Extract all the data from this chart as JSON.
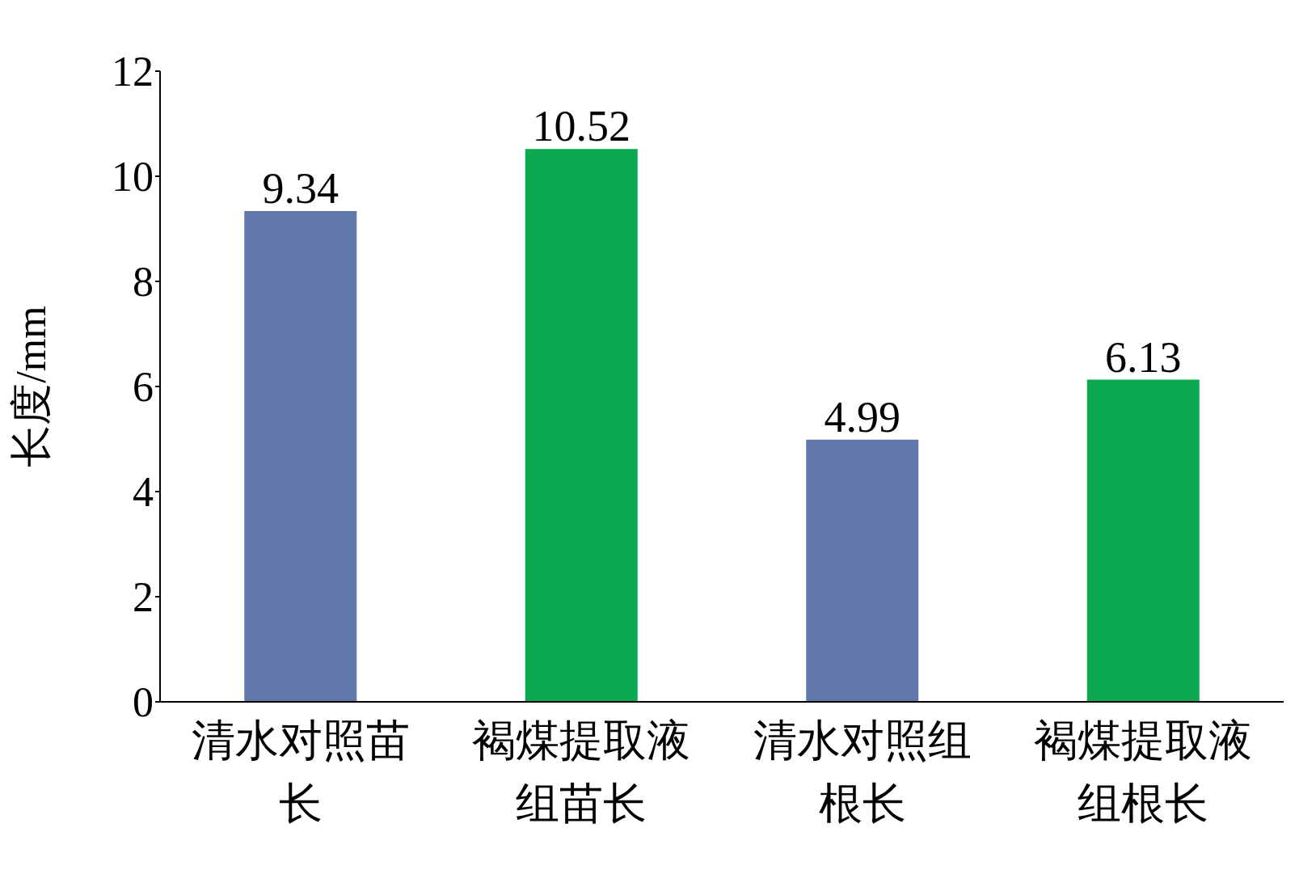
{
  "chart_data": {
    "type": "bar",
    "ylabel": "长度/mm",
    "categories": [
      "清水对照苗长",
      "褐煤提取液组苗长",
      "清水对照组根长",
      "褐煤提取液组根长"
    ],
    "values": [
      9.34,
      10.52,
      4.99,
      6.13
    ],
    "colors": [
      "#6079aa",
      "#0aa84f",
      "#6079aa",
      "#0aa84f"
    ],
    "ylim": [
      0,
      12
    ],
    "yticks": [
      0,
      2,
      4,
      6,
      8,
      10,
      12
    ],
    "data_labels": true,
    "grid": false
  }
}
